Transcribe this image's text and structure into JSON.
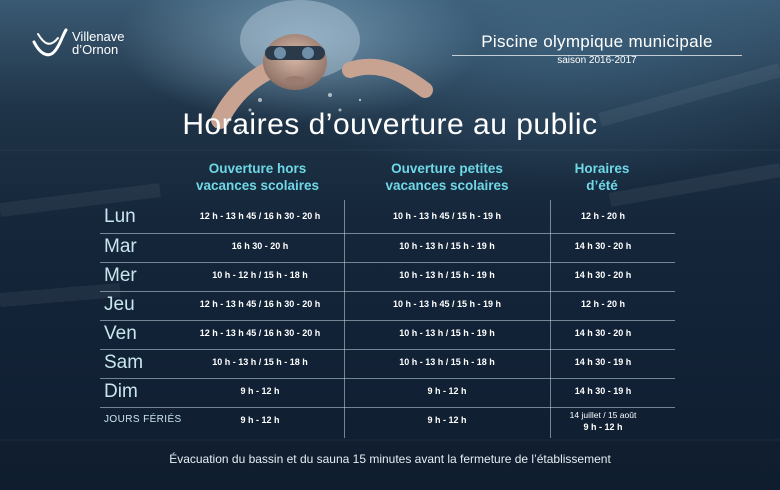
{
  "logo": {
    "line1": "Villenave",
    "line2": "d’Ornon"
  },
  "header": {
    "title_part1": "Piscine ",
    "title_part2": "olympique",
    "title_part3": " municipale",
    "season": "saison 2016-2017"
  },
  "main_title": "Horaires d’ouverture au public",
  "columns": [
    {
      "line1": "Ouverture hors",
      "line2": "vacances scolaires"
    },
    {
      "line1": "Ouverture petites",
      "line2": "vacances scolaires"
    },
    {
      "line1": "Horaires",
      "line2": "d’été"
    }
  ],
  "rows": [
    {
      "day": "Lun",
      "c1": "12 h - 13 h 45 / 16 h 30 - 20 h",
      "c2": "10 h - 13 h 45  /  15 h - 19 h",
      "c3": "12 h - 20 h"
    },
    {
      "day": "Mar",
      "c1": "16 h 30 - 20 h",
      "c2": "10 h - 13 h  /  15 h - 19 h",
      "c3": "14 h 30 - 20 h"
    },
    {
      "day": "Mer",
      "c1": "10 h - 12 h  /  15 h - 18 h",
      "c2": "10 h - 13 h  /  15 h - 19 h",
      "c3": "14 h 30 - 20 h"
    },
    {
      "day": "Jeu",
      "c1": "12 h - 13 h 45  /  16 h 30 - 20 h",
      "c2": "10 h - 13 h 45  /  15 h - 19 h",
      "c3": "12 h - 20 h"
    },
    {
      "day": "Ven",
      "c1": "12 h - 13 h 45  /  16 h 30 - 20 h",
      "c2": "10 h - 13 h  /  15 h - 19 h",
      "c3": "14 h 30 - 20 h"
    },
    {
      "day": "Sam",
      "c1": "10 h - 13 h  /  15 h - 18 h",
      "c2": "10 h - 13 h  /  15 h - 18 h",
      "c3": "14 h 30 - 19 h"
    },
    {
      "day": "Dim",
      "c1": "9 h - 12 h",
      "c2": "9 h - 12 h",
      "c3": "14 h 30 - 19 h"
    },
    {
      "day": "JOURS FÉRIÉS",
      "c1": "9 h - 12 h",
      "c2": "9 h - 12 h",
      "c3_line1": "14 juillet / 15 août",
      "c3_line2": "9 h - 12 h"
    }
  ],
  "footer": "Évacuation du bassin et du sauna 15 minutes avant la fermeture de l’établissement",
  "colors": {
    "accent": "#6fd8e6",
    "background": "#15263a",
    "day_label": "#c9e6ee"
  }
}
